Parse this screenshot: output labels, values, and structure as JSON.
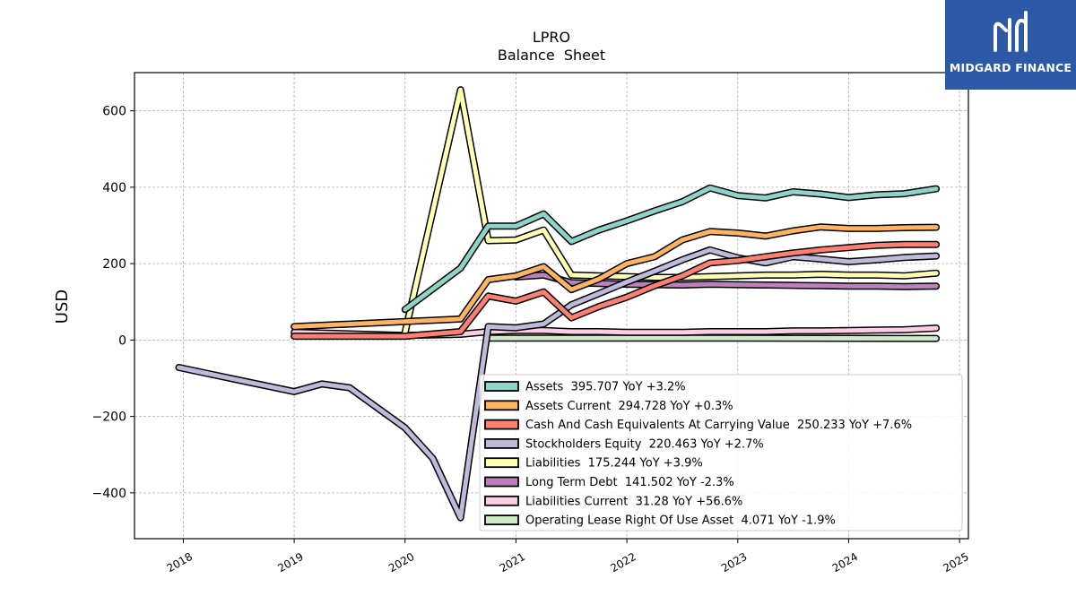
{
  "logo": {
    "text": "MIDGARD FINANCE"
  },
  "chart_data": {
    "type": "line",
    "title": "LPRO",
    "subtitle": "Balance  Sheet",
    "ylabel": "USD",
    "xlabel": "",
    "ylim": [
      -520,
      700
    ],
    "xlim": [
      2017.56,
      2025.08
    ],
    "yticks": [
      -400,
      -200,
      0,
      200,
      400,
      600
    ],
    "ytick_labels": [
      "−400",
      "−200",
      "0",
      "200",
      "400",
      "600"
    ],
    "xticks": [
      2018,
      2019,
      2020,
      2021,
      2022,
      2023,
      2024,
      2025
    ],
    "xtick_labels": [
      "2018",
      "2019",
      "2020",
      "2021",
      "2022",
      "2023",
      "2024",
      "2025"
    ],
    "grid": true,
    "legend_position": "bottom-right",
    "series": [
      {
        "name": "Assets",
        "legend": "Assets  395.707 YoY +3.2%",
        "color": "#8dd3c7",
        "x": [
          2020.0,
          2020.5,
          2020.75,
          2021.0,
          2021.25,
          2021.5,
          2021.75,
          2022.0,
          2022.25,
          2022.5,
          2022.75,
          2023.0,
          2023.25,
          2023.5,
          2023.75,
          2024.0,
          2024.25,
          2024.5,
          2024.79
        ],
        "y": [
          80,
          188,
          298,
          298,
          330,
          258,
          288,
          312,
          338,
          362,
          398,
          378,
          372,
          388,
          382,
          373,
          380,
          383,
          396
        ]
      },
      {
        "name": "Assets Current",
        "legend": "Assets Current  294.728 YoY +0.3%",
        "color": "#fdb462",
        "x": [
          2019.0,
          2020.5,
          2020.75,
          2021.0,
          2021.25,
          2021.5,
          2021.75,
          2022.0,
          2022.25,
          2022.5,
          2022.75,
          2023.0,
          2023.25,
          2023.5,
          2023.75,
          2024.0,
          2024.25,
          2024.5,
          2024.79
        ],
        "y": [
          35,
          55,
          158,
          168,
          192,
          132,
          160,
          200,
          218,
          262,
          284,
          280,
          272,
          286,
          296,
          292,
          292,
          294,
          295
        ]
      },
      {
        "name": "Cash And Cash Equivalents At Carrying Value",
        "legend": "Cash And Cash Equivalents At Carrying Value  250.233 YoY +7.6%",
        "color": "#fb8072",
        "x": [
          2019.0,
          2020.0,
          2020.5,
          2020.75,
          2021.0,
          2021.25,
          2021.5,
          2021.75,
          2022.0,
          2022.25,
          2022.5,
          2022.75,
          2023.0,
          2023.25,
          2023.5,
          2023.75,
          2024.0,
          2024.25,
          2024.5,
          2024.79
        ],
        "y": [
          10,
          10,
          22,
          115,
          102,
          126,
          58,
          88,
          112,
          142,
          168,
          202,
          208,
          218,
          228,
          236,
          242,
          248,
          250,
          250
        ]
      },
      {
        "name": "Stockholders Equity",
        "legend": "Stockholders Equity  220.463 YoY +2.7%",
        "color": "#bebada",
        "x": [
          2017.96,
          2018.5,
          2019.0,
          2019.25,
          2019.5,
          2020.0,
          2020.25,
          2020.5,
          2020.75,
          2021.0,
          2021.25,
          2021.5,
          2021.75,
          2022.0,
          2022.25,
          2022.5,
          2022.75,
          2023.0,
          2023.25,
          2023.5,
          2023.75,
          2024.0,
          2024.25,
          2024.5,
          2024.79
        ],
        "y": [
          -72,
          -105,
          -135,
          -115,
          -125,
          -230,
          -310,
          -465,
          35,
          32,
          42,
          92,
          122,
          152,
          180,
          210,
          236,
          215,
          202,
          218,
          212,
          205,
          210,
          216,
          220
        ]
      },
      {
        "name": "Liabilities",
        "legend": "Liabilities  175.244 YoY +3.9%",
        "color": "#ffffb3",
        "x": [
          2020.0,
          2020.5,
          2020.75,
          2021.0,
          2021.25,
          2021.5,
          2021.75,
          2022.0,
          2022.25,
          2022.5,
          2022.75,
          2023.0,
          2023.25,
          2023.5,
          2023.75,
          2024.0,
          2024.25,
          2024.5,
          2024.79
        ],
        "y": [
          20,
          655,
          260,
          262,
          288,
          170,
          168,
          166,
          164,
          164,
          166,
          168,
          170,
          170,
          172,
          170,
          170,
          168,
          175
        ]
      },
      {
        "name": "Long Term Debt",
        "legend": "Long Term Debt  141.502 YoY -2.3%",
        "color": "#bc80bd",
        "x": [
          2021.0,
          2021.25,
          2021.5,
          2021.75,
          2022.0,
          2022.25,
          2022.5,
          2022.75,
          2023.0,
          2023.25,
          2023.5,
          2023.75,
          2024.0,
          2024.25,
          2024.5,
          2024.79
        ],
        "y": [
          165,
          170,
          150,
          148,
          146,
          145,
          144,
          146,
          145,
          144,
          143,
          142,
          141,
          141,
          140,
          141
        ]
      },
      {
        "name": "Liabilities Current",
        "legend": "Liabilities Current  31.28 YoY +56.6%",
        "color": "#fccde5",
        "x": [
          2019.0,
          2020.0,
          2020.5,
          2020.75,
          2021.0,
          2021.25,
          2021.5,
          2021.75,
          2022.0,
          2022.25,
          2022.5,
          2022.75,
          2023.0,
          2023.25,
          2023.5,
          2023.75,
          2024.0,
          2024.25,
          2024.5,
          2024.79
        ],
        "y": [
          20,
          12,
          15,
          22,
          25,
          25,
          22,
          22,
          20,
          20,
          20,
          22,
          22,
          22,
          24,
          24,
          25,
          26,
          27,
          31
        ]
      },
      {
        "name": "Operating Lease Right Of Use Asset",
        "legend": "Operating Lease Right Of Use Asset  4.071 YoY -1.9%",
        "color": "#ccebc5",
        "x": [
          2020.75,
          2021.0,
          2021.5,
          2022.0,
          2022.5,
          2023.0,
          2023.5,
          2024.0,
          2024.5,
          2024.79
        ],
        "y": [
          5,
          5,
          5,
          5,
          5,
          5,
          4.5,
          4.3,
          4.1,
          4.07
        ]
      }
    ]
  }
}
